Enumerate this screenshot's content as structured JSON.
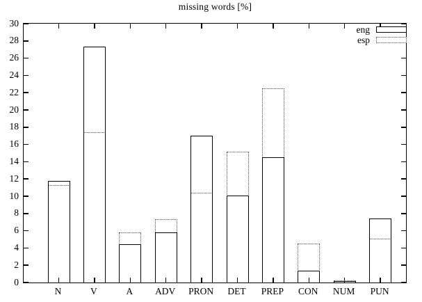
{
  "chart_data": {
    "type": "bar",
    "title": "missing words [%]",
    "xlabel": "",
    "ylabel": "",
    "categories": [
      "N",
      "V",
      "A",
      "ADV",
      "PRON",
      "DET",
      "PREP",
      "CON",
      "NUM",
      "PUN"
    ],
    "series": [
      {
        "name": "eng",
        "style": "solid",
        "values": [
          11.8,
          27.3,
          4.4,
          5.8,
          17.0,
          10.1,
          14.5,
          1.4,
          0.2,
          7.4
        ]
      },
      {
        "name": "esp",
        "style": "dotted",
        "values": [
          11.3,
          17.4,
          5.8,
          7.3,
          10.4,
          15.2,
          22.5,
          4.5,
          0.25,
          5.1
        ]
      }
    ],
    "ylim": [
      0,
      30
    ],
    "ytick_step": 2,
    "ytick_labels": [
      "0",
      "2",
      "4",
      "6",
      "8",
      "10",
      "12",
      "14",
      "16",
      "18",
      "20",
      "22",
      "24",
      "26",
      "28",
      "30"
    ],
    "legend_position": "top-right",
    "grid": false,
    "colors": {
      "line": "#000000",
      "background": "#ffffff"
    }
  }
}
